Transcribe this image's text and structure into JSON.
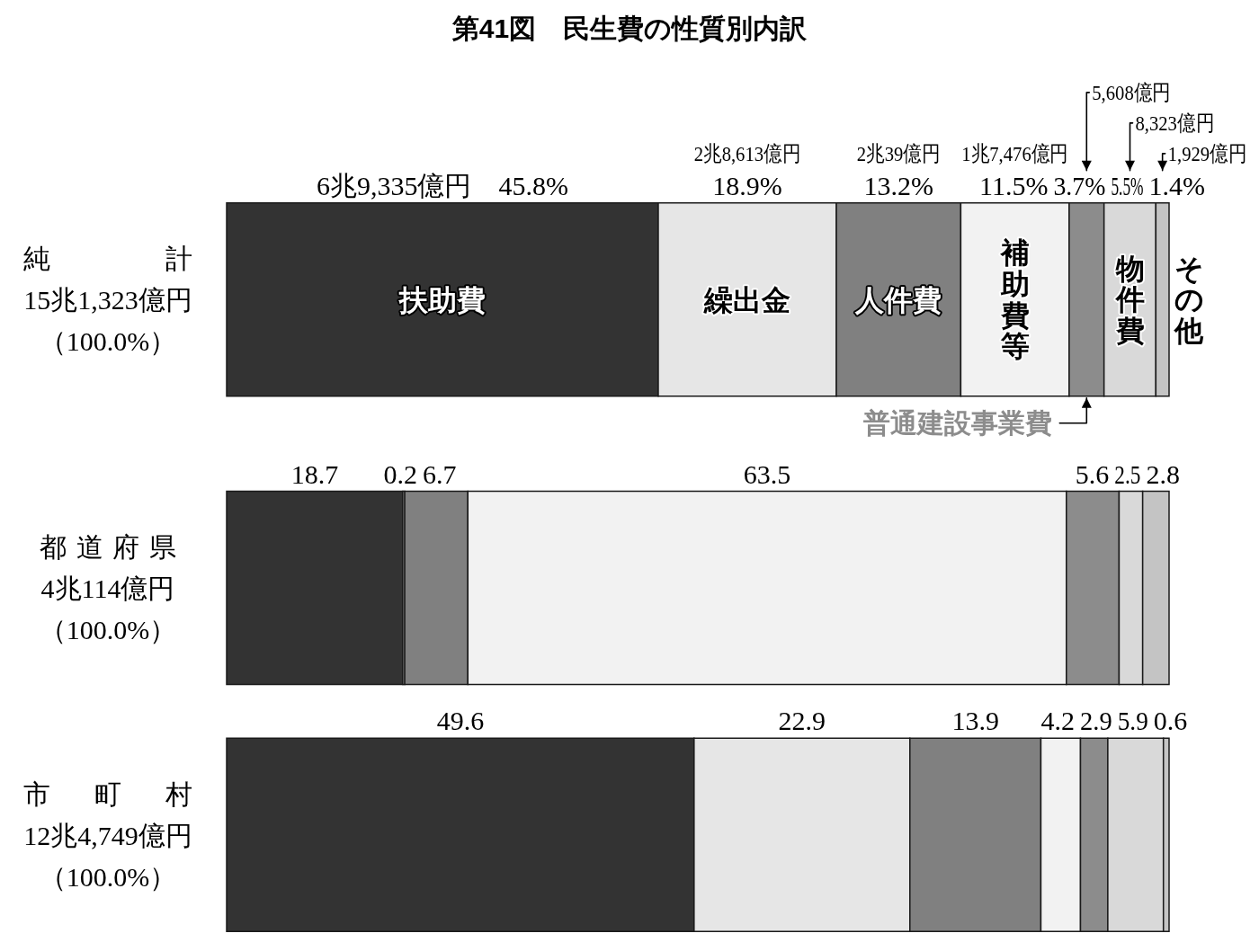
{
  "chart_data": {
    "type": "bar",
    "title": "第41図　民生費の性質別内訳",
    "orientation": "horizontal",
    "stacked": true,
    "categories": [
      "純計",
      "都道府県",
      "市町村"
    ],
    "totals": [
      "15兆1,323億円（100.0%）",
      "4兆114億円（100.0%）",
      "12兆4,749億円（100.0%）"
    ],
    "xlim": [
      0,
      100
    ],
    "tick_labels": "y",
    "series": [
      {
        "name": "扶助費",
        "color": "#333333",
        "values": [
          45.8,
          18.7,
          49.6
        ],
        "value_labels": [
          "6兆9,335億円　45.8%",
          "18.7",
          "49.6"
        ]
      },
      {
        "name": "繰出金",
        "color": "#e6e6e6",
        "values": [
          18.9,
          0.2,
          22.9
        ],
        "value_labels": [
          "2兆8,613億円\n18.9%",
          "0.2",
          "22.9"
        ]
      },
      {
        "name": "人件費",
        "color": "#808080",
        "values": [
          13.2,
          6.7,
          13.9
        ],
        "value_labels": [
          "2兆39億円\n13.2%",
          "6.7",
          "13.9"
        ]
      },
      {
        "name": "補助費等",
        "color": "#f2f2f2",
        "values": [
          11.5,
          63.5,
          4.2
        ],
        "value_labels": [
          "1兆7,476億円\n11.5%",
          "63.5",
          "4.2"
        ]
      },
      {
        "name": "普通建設事業費",
        "color": "#8c8c8c",
        "values": [
          3.7,
          5.6,
          2.9
        ],
        "value_labels": [
          "5,608億円\n3.7%",
          "5.6",
          "2.9"
        ]
      },
      {
        "name": "物件費",
        "color": "#d9d9d9",
        "values": [
          5.5,
          2.5,
          5.9
        ],
        "value_labels": [
          "8,323億円\n5.5%",
          "2.5",
          "5.9"
        ]
      },
      {
        "name": "その他",
        "color": "#c4c4c4",
        "values": [
          1.4,
          2.8,
          0.6
        ],
        "value_labels": [
          "1,929億円\n1.4%",
          "2.8",
          "0.6"
        ]
      }
    ]
  }
}
